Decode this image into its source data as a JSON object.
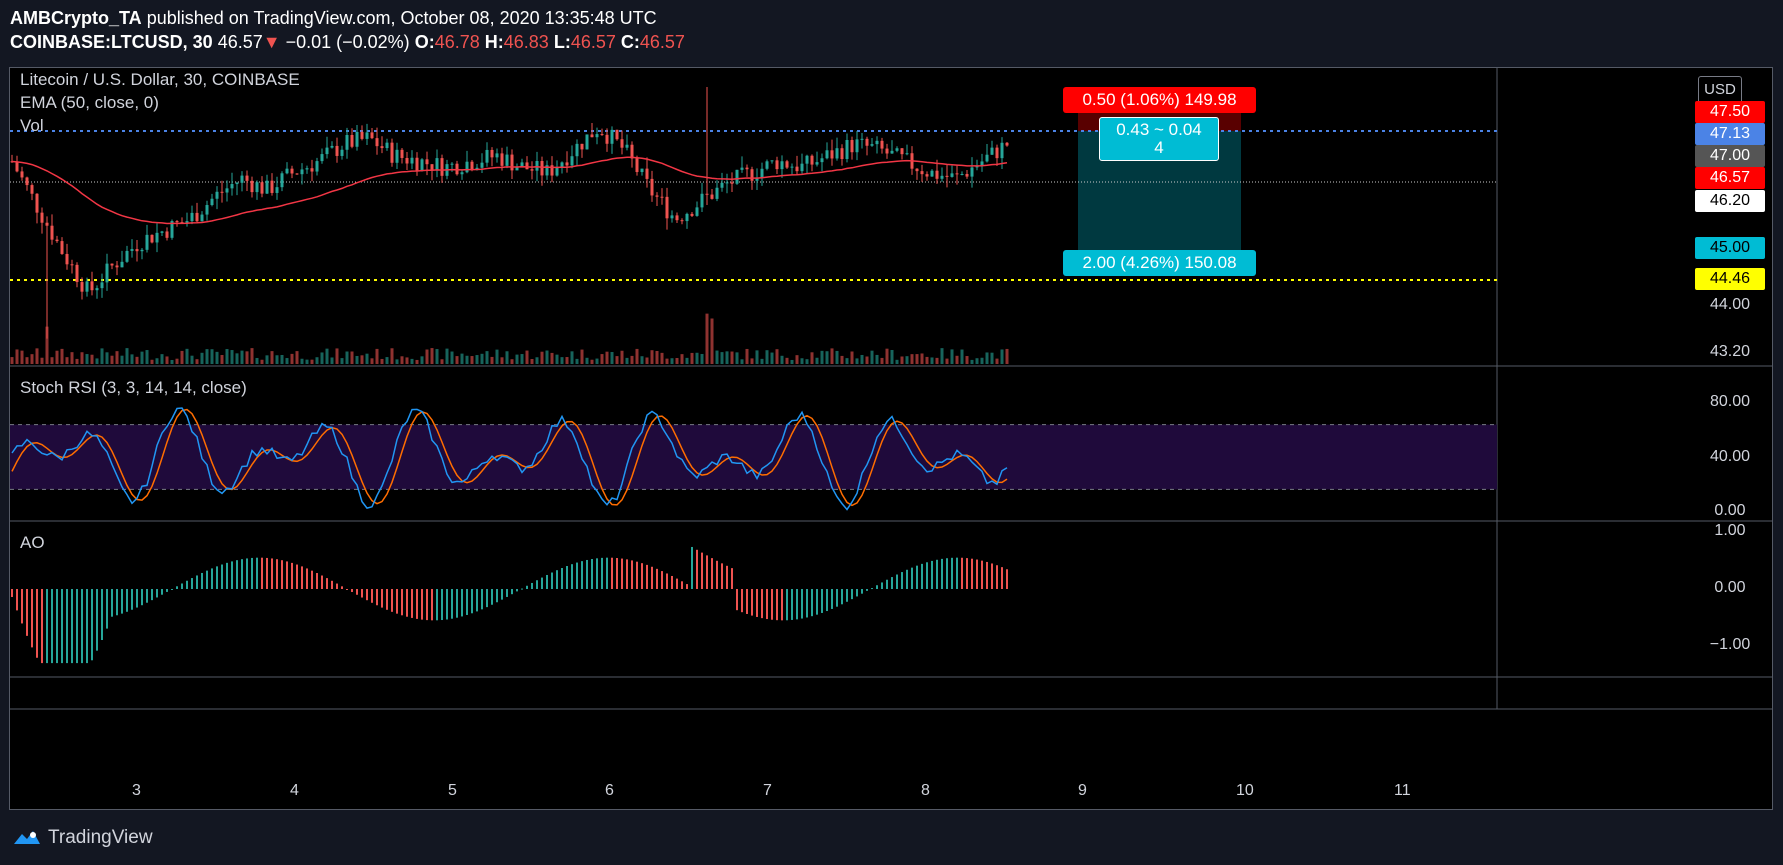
{
  "header": {
    "publisher": "AMBCrypto_TA",
    "published_text": "published on TradingView.com, October 08, 2020 13:35:48 UTC",
    "symbol": "COINBASE:LTCUSD, 30",
    "last": "46.57",
    "change": "−0.01 (−0.02%)",
    "o_label": "O:",
    "o": "46.78",
    "h_label": "H:",
    "h": "46.83",
    "l_label": "L:",
    "l": "46.57",
    "c_label": "C:",
    "c": "46.57"
  },
  "main_pane": {
    "title": "Litecoin / U.S. Dollar, 30, COINBASE",
    "ema": "EMA (50, close, 0)",
    "vol": "Vol",
    "currency_button": "USD"
  },
  "position_tool": {
    "stop_label": "0.50 (1.06%) 149.98",
    "ratio_label_line1": "0.43 ~ 0.04",
    "ratio_label_line2": "4",
    "target_label": "2.00 (4.26%) 150.08"
  },
  "price_labels": [
    {
      "text": "47.50",
      "bg": "#ff0000",
      "fg": "#ffffff"
    },
    {
      "text": "47.13",
      "bg": "#4b83e6",
      "fg": "#ffffff"
    },
    {
      "text": "47.00",
      "bg": "#555555",
      "fg": "#ffffff"
    },
    {
      "text": "46.57",
      "bg": "#ff0000",
      "fg": "#ffffff"
    },
    {
      "text": "46.20",
      "bg": "#ffffff",
      "fg": "#000000"
    },
    {
      "text": "45.00",
      "bg": "#00bcd4",
      "fg": "#000000"
    },
    {
      "text": "44.46",
      "bg": "#ffff00",
      "fg": "#000000"
    }
  ],
  "price_axis": [
    "44.00",
    "43.20"
  ],
  "stoch_pane": {
    "title": "Stoch RSI (3, 3, 14, 14, close)",
    "axis": [
      "80.00",
      "40.00",
      "0.00"
    ]
  },
  "ao_pane": {
    "title": "AO",
    "axis": [
      "1.00",
      "0.00",
      "−1.00"
    ]
  },
  "x_axis": [
    "3",
    "4",
    "5",
    "6",
    "7",
    "8",
    "9",
    "10",
    "11"
  ],
  "footer": {
    "brand": "TradingView"
  },
  "colors": {
    "bull": "#26a69a",
    "bear": "#ef5350",
    "ema": "#f23645",
    "stoch_k": "#2196f3",
    "stoch_d": "#ff6d00",
    "band": "#1f0a3b"
  },
  "chart_data": {
    "type": "candlestick",
    "x_ticks": [
      "3",
      "4",
      "5",
      "6",
      "7",
      "8",
      "9",
      "10",
      "11"
    ],
    "price_range": [
      43.2,
      47.9
    ],
    "close_series_approx": [
      46.6,
      45.8,
      45.0,
      44.3,
      44.8,
      45.2,
      45.4,
      45.6,
      46.0,
      46.3,
      46.1,
      46.4,
      46.6,
      46.9,
      47.0,
      46.7,
      46.6,
      46.5,
      46.6,
      46.7,
      46.5,
      46.4,
      46.8,
      47.2,
      46.8,
      46.1,
      45.6,
      45.9,
      46.2,
      46.4,
      46.6,
      46.5,
      46.7,
      46.9,
      46.8,
      46.6,
      46.4,
      46.3,
      46.6,
      46.9
    ]
  }
}
